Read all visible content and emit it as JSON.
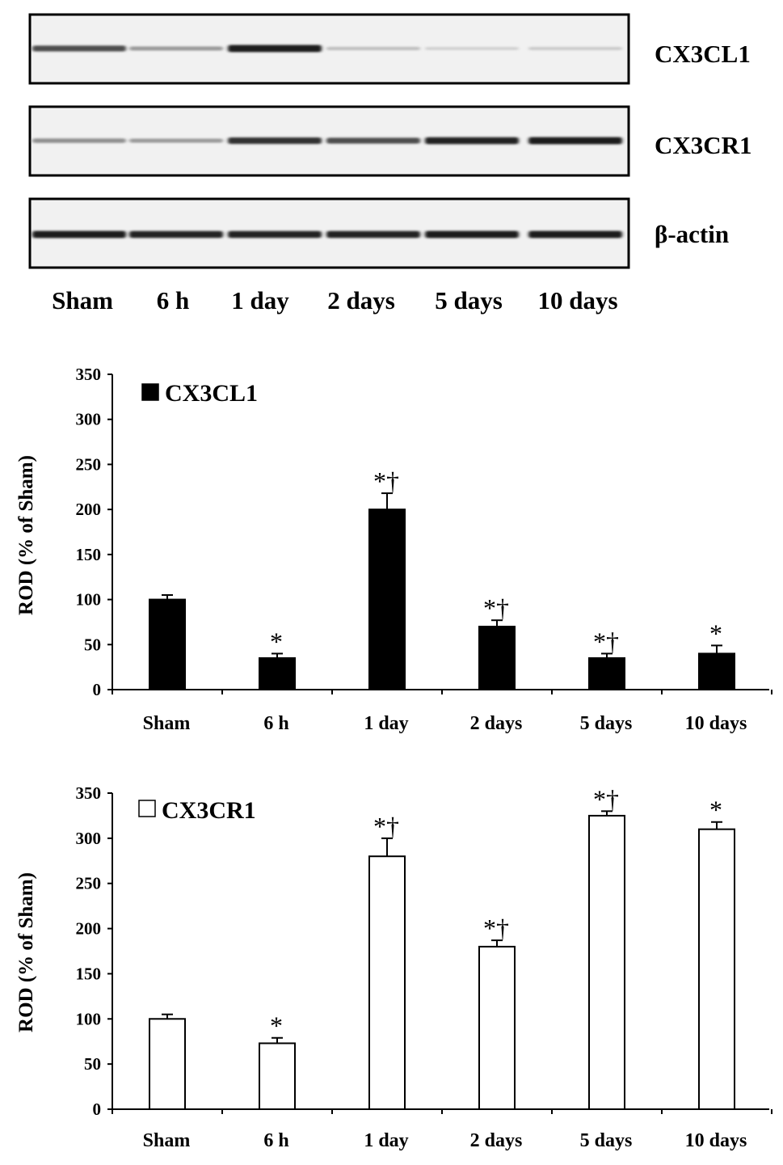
{
  "blot": {
    "lanes": [
      "Sham",
      "6 h",
      "1 day",
      "2 days",
      "5 days",
      "10 days"
    ],
    "rows": [
      {
        "label": "CX3CL1",
        "band_intensity": [
          0.72,
          0.35,
          0.95,
          0.18,
          0.1,
          0.12
        ]
      },
      {
        "label": "CX3CR1",
        "band_intensity": [
          0.4,
          0.35,
          0.85,
          0.72,
          0.92,
          0.95
        ]
      },
      {
        "label": "β-actin",
        "band_intensity": [
          0.95,
          0.92,
          0.92,
          0.92,
          0.95,
          0.95
        ]
      }
    ]
  },
  "chart_data": [
    {
      "type": "bar",
      "legend": "CX3CL1",
      "categories": [
        "Sham",
        "6 h",
        "1 day",
        "2 days",
        "5 days",
        "10 days"
      ],
      "series": [
        {
          "name": "CX3CL1",
          "values": [
            100,
            35,
            200,
            70,
            35,
            40
          ],
          "errors": [
            5,
            5,
            18,
            7,
            5,
            9
          ],
          "fill": "#000000"
        }
      ],
      "significance": [
        "",
        "*",
        "*†",
        "*†",
        "*†",
        "*"
      ],
      "ylabel": "ROD (% of Sham)",
      "ylim": [
        0,
        350
      ],
      "yticks": [
        0,
        50,
        100,
        150,
        200,
        250,
        300,
        350
      ],
      "grid": false,
      "legend_position": "top-left"
    },
    {
      "type": "bar",
      "legend": "CX3CR1",
      "categories": [
        "Sham",
        "6 h",
        "1 day",
        "2 days",
        "5 days",
        "10 days"
      ],
      "series": [
        {
          "name": "CX3CR1",
          "values": [
            100,
            73,
            280,
            180,
            325,
            310
          ],
          "errors": [
            5,
            6,
            20,
            7,
            5,
            8
          ],
          "fill": "#ffffff"
        }
      ],
      "significance": [
        "",
        "*",
        "*†",
        "*†",
        "*†",
        "*"
      ],
      "ylabel": "ROD (% of Sham)",
      "ylim": [
        0,
        350
      ],
      "yticks": [
        0,
        50,
        100,
        150,
        200,
        250,
        300,
        350
      ],
      "grid": false,
      "legend_position": "top-left"
    }
  ]
}
